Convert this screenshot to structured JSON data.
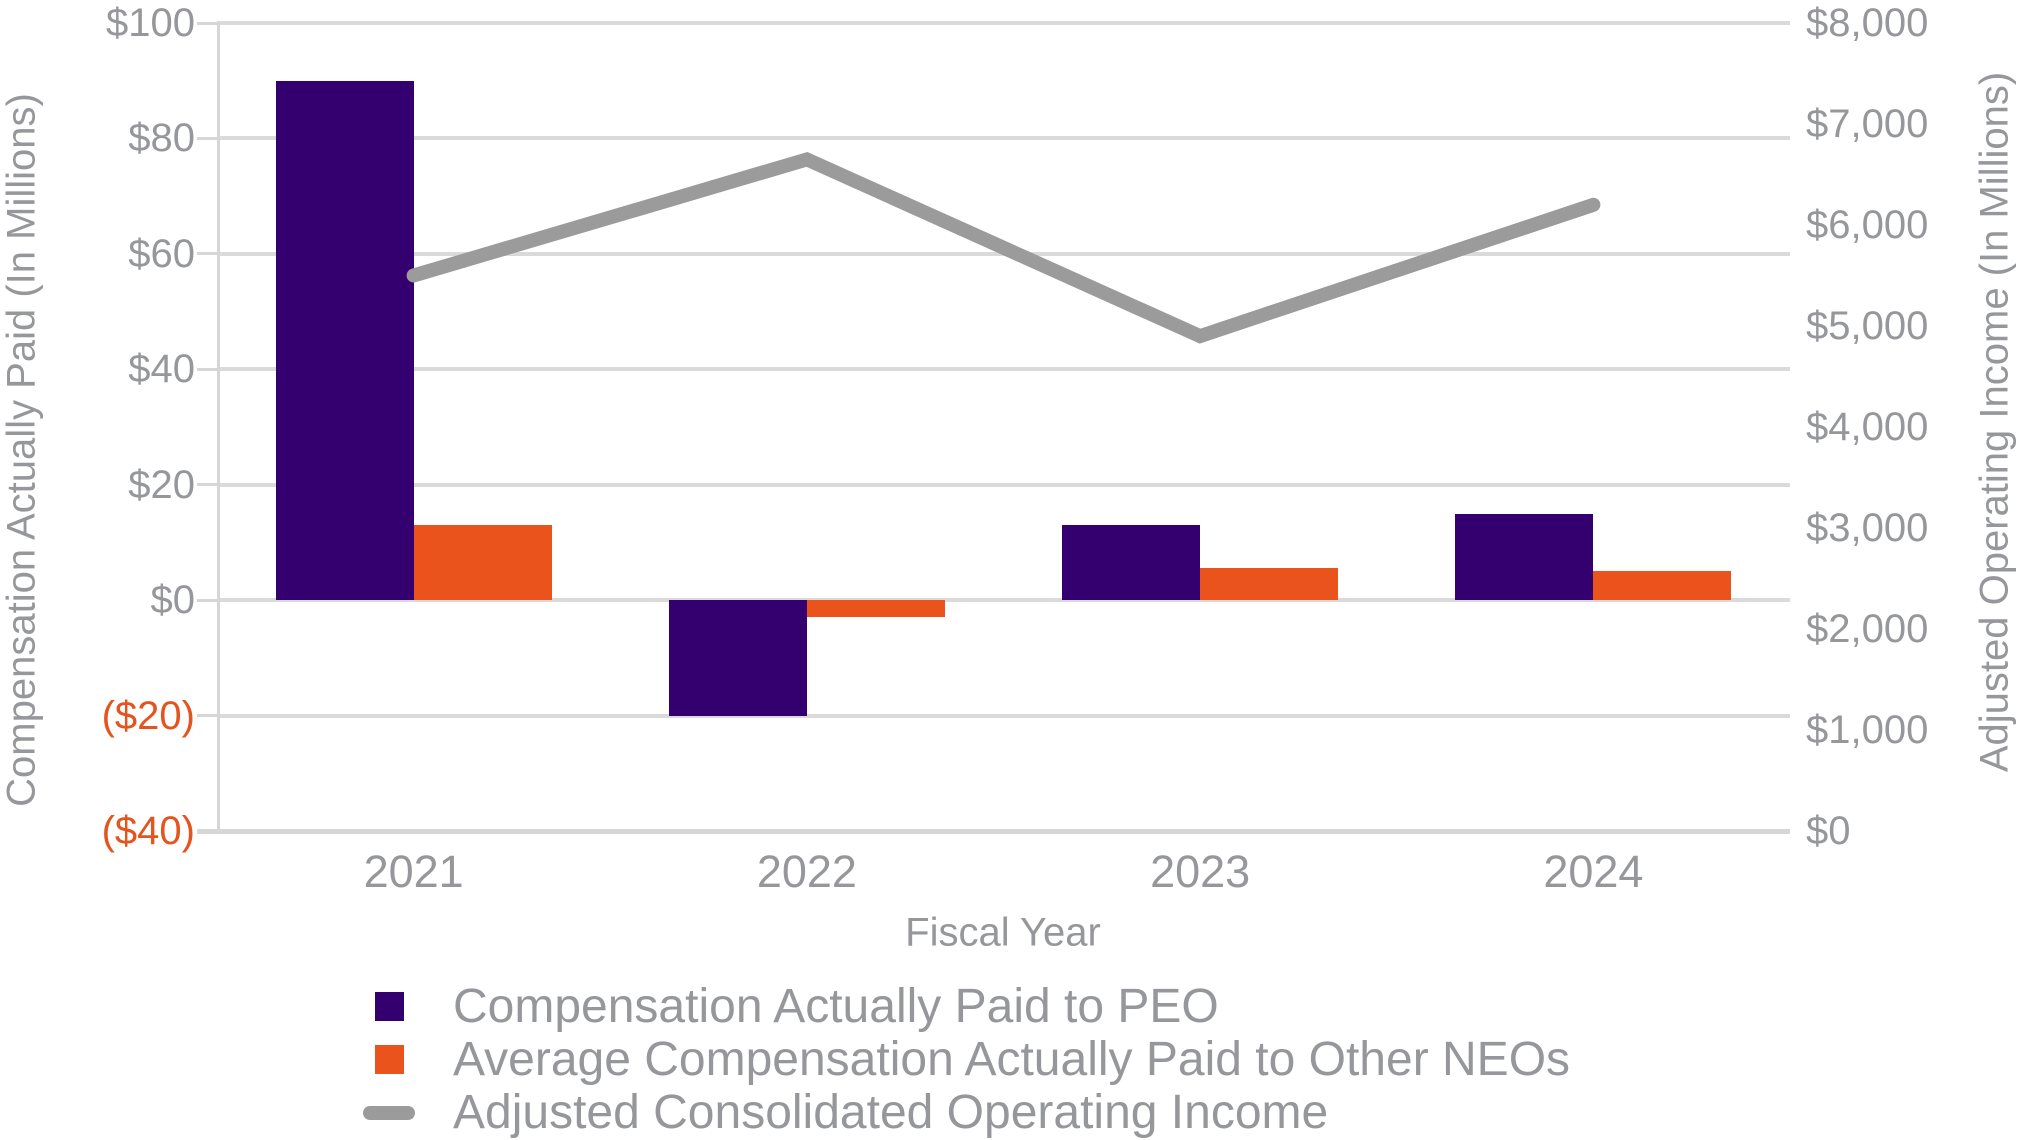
{
  "chart_data": {
    "type": "bar",
    "subtype": "combo-bar-line",
    "categories": [
      "2021",
      "2022",
      "2023",
      "2024"
    ],
    "series": [
      {
        "name": "Compensation Actually Paid to PEO",
        "type": "bar",
        "axis": "left",
        "color": "#340070",
        "values": [
          90,
          -20,
          13,
          15
        ]
      },
      {
        "name": "Average Compensation Actually Paid to Other NEOs",
        "type": "bar",
        "axis": "left",
        "color": "#EA531C",
        "values": [
          13,
          -3,
          5.5,
          5
        ]
      },
      {
        "name": "Adjusted Consolidated Operating Income",
        "type": "line",
        "axis": "right",
        "color": "#9B9B9B",
        "values": [
          5500,
          6650,
          4900,
          6200
        ]
      }
    ],
    "title": "",
    "xlabel": "Fiscal Year",
    "left_axis": {
      "title": "Compensation Actually Paid (In Millions)",
      "min": -40,
      "max": 100,
      "tick_step": 20,
      "tick_labels": [
        "$100",
        "$80",
        "$60",
        "$40",
        "$20",
        "$0",
        "($20)",
        "($40)"
      ]
    },
    "right_axis": {
      "title": "Adjusted Operating Income (In Millions)",
      "min": 0,
      "max": 8000,
      "tick_step": 1000,
      "tick_labels": [
        "$8,000",
        "$7,000",
        "$6,000",
        "$5,000",
        "$4,000",
        "$3,000",
        "$2,000",
        "$1,000",
        "$0"
      ]
    },
    "grid": true,
    "legend_position": "bottom-left"
  },
  "colors": {
    "background": "#FFFFFF",
    "gridline": "#DADADA",
    "axis_text": "#95979A",
    "negative_tick_text": "#E5541E",
    "peo_bar": "#340070",
    "neo_bar": "#EA531C",
    "income_line": "#9B9B9B"
  }
}
